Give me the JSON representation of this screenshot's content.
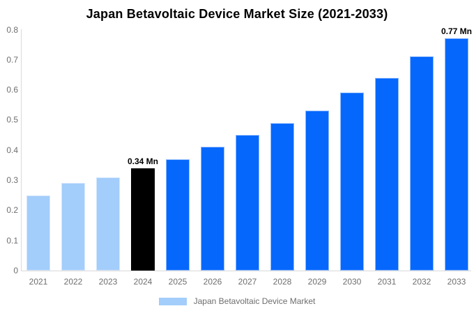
{
  "title": "Japan Betavoltaic Device Market Size (2021-2033)",
  "legend": {
    "label": "Japan Betavoltaic Device Market",
    "swatch_color": "#a3cdfa"
  },
  "colors": {
    "historical_bar": "#a3cdfa",
    "base_year_bar": "#000000",
    "forecast_bar": "#0667fc",
    "axis_line": "#d9d9d9",
    "tick_text": "#6e6e6e",
    "title_text": "#000000",
    "value_label_text": "#000000"
  },
  "chart_data": {
    "type": "bar",
    "title": "Japan Betavoltaic Device Market Size (2021-2033)",
    "categories": [
      "2021",
      "2022",
      "2023",
      "2024",
      "2025",
      "2026",
      "2027",
      "2028",
      "2029",
      "2030",
      "2031",
      "2032",
      "2033"
    ],
    "values": [
      0.25,
      0.29,
      0.31,
      0.34,
      0.37,
      0.41,
      0.45,
      0.49,
      0.53,
      0.59,
      0.64,
      0.71,
      0.77
    ],
    "point_colors": [
      "#a3cdfa",
      "#a3cdfa",
      "#a3cdfa",
      "#000000",
      "#0667fc",
      "#0667fc",
      "#0667fc",
      "#0667fc",
      "#0667fc",
      "#0667fc",
      "#0667fc",
      "#0667fc",
      "#0667fc"
    ],
    "point_labels": [
      "",
      "",
      "",
      "0.34 Mn",
      "",
      "",
      "",
      "",
      "",
      "",
      "",
      "",
      "0.77 Mn"
    ],
    "unit": "Mn",
    "xlabel": "",
    "ylabel": "",
    "ylim": [
      0,
      0.8
    ],
    "ytick_labels": [
      "0",
      "0.1",
      "0.2",
      "0.3",
      "0.4",
      "0.5",
      "0.6",
      "0.7",
      "0.8"
    ],
    "grid": false,
    "legend_position": "bottom",
    "legend_entries": [
      "Japan Betavoltaic Device Market"
    ]
  }
}
